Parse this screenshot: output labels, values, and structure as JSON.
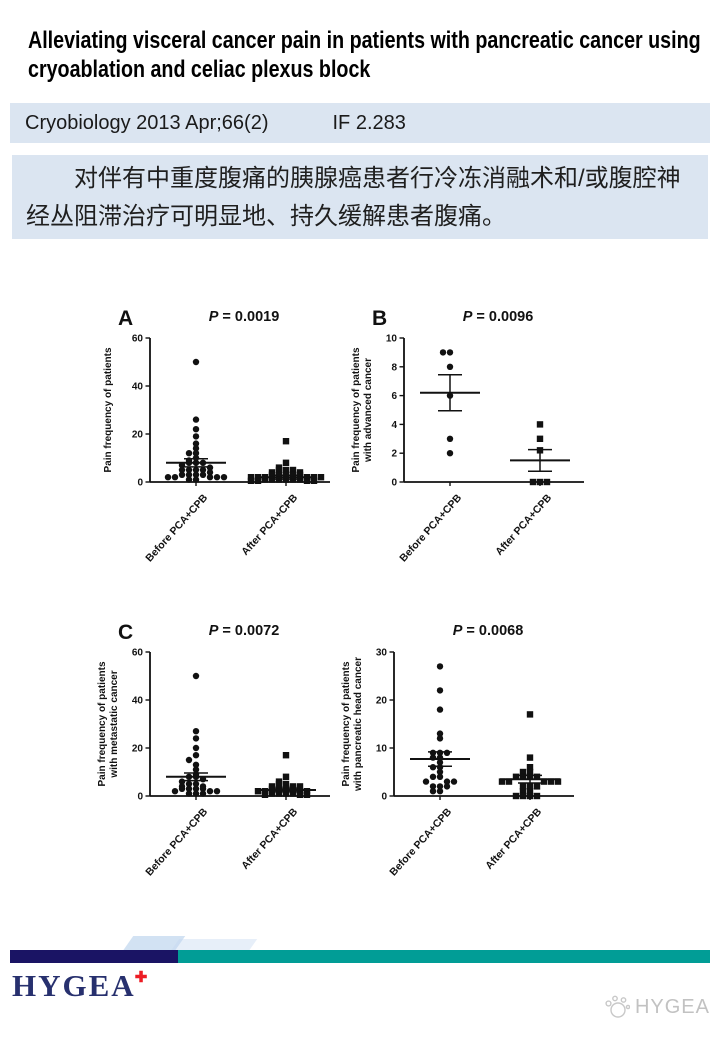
{
  "page": {
    "title": "Alleviating visceral cancer pain in patients with pancreatic cancer using cryoablation and celiac plexus block"
  },
  "journal": {
    "citation": "Cryobiology 2013 Apr;66(2)",
    "impact_factor": "IF 2.283"
  },
  "summary_cn": "对伴有中重度腹痛的胰腺癌患者行冷冻消融术和/或腹腔神经丛阻滞治疗可明显地、持久缓解患者腹痛。",
  "footer": {
    "logo_text": "HYGEA",
    "logo_cross": "✚",
    "watermark_text": "HYGEA"
  },
  "colors": {
    "box_blue": "#dbe5f1",
    "bar_navy": "#1a1464",
    "bar_teal": "#019d96",
    "wisp_blue": "#c3d8ef",
    "logo_navy": "#27306e",
    "cross_red": "#ed1c24",
    "watermark_gray": "#c2c2c2",
    "point_black": "#111111"
  },
  "chart_data": [
    {
      "type": "scatter",
      "panel_label": "A",
      "p_text": "P = 0.0019",
      "ylabel_lines": [
        "Pain frequency of patients"
      ],
      "ylim": [
        0,
        60
      ],
      "yticks": [
        0,
        20,
        40,
        60
      ],
      "categories": [
        "Before PCA+CPB",
        "After PCA+CPB"
      ],
      "groups": [
        {
          "label": "Before PCA+CPB",
          "marker": "circle",
          "mean": 8,
          "sem": 1.7,
          "values": [
            50,
            26,
            22,
            19,
            16,
            14,
            12,
            12,
            10,
            9,
            8,
            8,
            8,
            7,
            6,
            5,
            5,
            5,
            5,
            4,
            3,
            3,
            3,
            3,
            2,
            2,
            2,
            2,
            2,
            1,
            1
          ]
        },
        {
          "label": "After PCA+CPB",
          "marker": "square",
          "mean": 2,
          "sem": 0.8,
          "values": [
            17,
            8,
            6,
            5,
            5,
            5,
            4,
            4,
            3,
            3,
            3,
            3,
            3,
            2,
            2,
            2,
            2,
            2,
            2,
            1,
            1,
            1,
            1,
            1,
            1,
            0.5,
            0.5,
            0.5,
            0.5
          ]
        }
      ]
    },
    {
      "type": "scatter",
      "panel_label": "B",
      "p_text": "P = 0.0096",
      "ylabel_lines": [
        "Pain frequency of patients",
        "with advanced cancer"
      ],
      "ylim": [
        0,
        10
      ],
      "yticks": [
        0,
        2,
        4,
        6,
        8,
        10
      ],
      "categories": [
        "Before PCA+CPB",
        "After PCA+CPB"
      ],
      "groups": [
        {
          "label": "Before PCA+CPB",
          "marker": "circle",
          "mean": 6.2,
          "sem": 1.25,
          "values": [
            9,
            9,
            8,
            6,
            3,
            2
          ]
        },
        {
          "label": "After PCA+CPB",
          "marker": "square",
          "mean": 1.5,
          "sem": 0.75,
          "values": [
            4,
            3,
            2.2,
            0,
            0,
            0
          ]
        }
      ]
    },
    {
      "type": "scatter",
      "panel_label": "C",
      "p_text": "P = 0.0072",
      "ylabel_lines": [
        "Pain frequency of patients",
        "with metastatic cancer"
      ],
      "ylim": [
        0,
        60
      ],
      "yticks": [
        0,
        20,
        40,
        60
      ],
      "categories": [
        "Before PCA+CPB",
        "After PCA+CPB"
      ],
      "groups": [
        {
          "label": "Before PCA+CPB",
          "marker": "circle",
          "mean": 8,
          "sem": 1.6,
          "values": [
            50,
            27,
            24,
            20,
            17,
            15,
            13,
            11,
            9,
            8,
            8,
            7,
            6,
            5,
            5,
            4,
            4,
            3,
            3,
            3,
            3,
            2,
            2,
            2,
            1,
            1,
            1
          ]
        },
        {
          "label": "After PCA+CPB",
          "marker": "square",
          "mean": 2.5,
          "sem": 0.8,
          "values": [
            17,
            8,
            6,
            5,
            5,
            4,
            4,
            4,
            3,
            3,
            3,
            3,
            2,
            2,
            2,
            2,
            1,
            1,
            1,
            1,
            0.5,
            0.5,
            0.5
          ]
        }
      ]
    },
    {
      "type": "scatter",
      "panel_label": "",
      "p_text": "P = 0.0068",
      "ylabel_lines": [
        "Pain frequency of patients",
        "with pancreatic head cancer"
      ],
      "ylim": [
        0,
        30
      ],
      "yticks": [
        0,
        10,
        20,
        30
      ],
      "categories": [
        "Before PCA+CPB",
        "After PCA+CPB"
      ],
      "groups": [
        {
          "label": "Before PCA+CPB",
          "marker": "circle",
          "mean": 7.7,
          "sem": 1.5,
          "values": [
            27,
            22,
            18,
            13,
            12,
            9,
            9,
            9,
            8,
            8,
            7,
            6,
            6,
            5,
            4,
            4,
            3,
            3,
            3,
            2,
            2,
            2,
            1,
            1
          ]
        },
        {
          "label": "After PCA+CPB",
          "marker": "square",
          "mean": 3.5,
          "sem": 0.8,
          "values": [
            17,
            8,
            6,
            5,
            5,
            4,
            4,
            4,
            4,
            3,
            3,
            3,
            3,
            3,
            2,
            2,
            2,
            1,
            1,
            0,
            0,
            0,
            0
          ]
        }
      ]
    }
  ]
}
